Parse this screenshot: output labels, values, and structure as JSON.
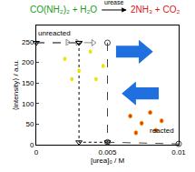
{
  "chart_data": {
    "type": "scatter",
    "title": [
      "CO(NH₂)₂ + H₂O",
      "urease",
      "2NH₃ + CO₂"
    ],
    "x_label": "[urea]₀ / M",
    "y_label": "⟨intensity⟩ / a.u.",
    "annotations": [
      "unreacted",
      "reacted"
    ],
    "xlim": [
      0,
      0.01
    ],
    "xticks": [
      0,
      0.005,
      0.01
    ],
    "ylim": [
      0,
      290
    ],
    "yticks": [
      0,
      50,
      100,
      150,
      200,
      250
    ],
    "grid": false,
    "series": [
      {
        "color": "#000000",
        "marker": "triangle-down",
        "line_style": "dash",
        "x": [
          0,
          0.003
        ],
        "values": [
          248,
          248
        ]
      },
      {
        "color": "#888888",
        "marker": "triangle-right",
        "line_style": "dash",
        "x": [
          0.0022,
          0.0029,
          0.004
        ],
        "values": [
          249,
          249,
          248
        ]
      },
      {
        "color": "#444444",
        "marker": "circle",
        "line_style": "dash",
        "x": [
          0.005,
          0.005,
          0.01
        ],
        "values": [
          248,
          6,
          2
        ]
      },
      {
        "color": "#000000",
        "marker": "triangle-down",
        "line_style": "dot",
        "x": [
          0.003,
          0.003,
          0.005
        ],
        "values": [
          248,
          6,
          6
        ]
      }
    ]
  }
}
